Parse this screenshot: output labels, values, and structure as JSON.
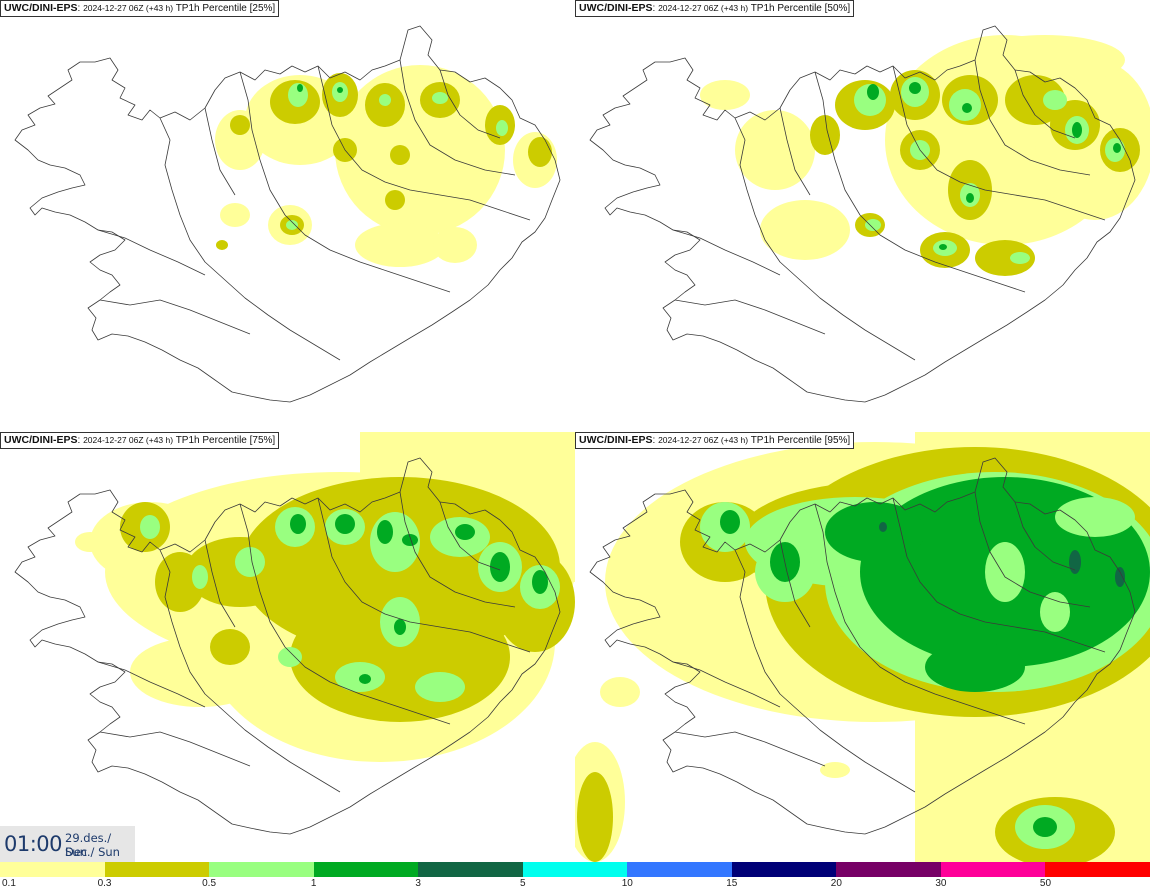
{
  "panels": [
    {
      "source": "UWC/DINI-EPS",
      "run": "2024-12-27 06Z (+43 h)",
      "variable": "TP1h Percentile [25%]"
    },
    {
      "source": "UWC/DINI-EPS",
      "run": "2024-12-27 06Z (+43 h)",
      "variable": "TP1h Percentile [50%]"
    },
    {
      "source": "UWC/DINI-EPS",
      "run": "2024-12-27 06Z (+43 h)",
      "variable": "TP1h Percentile [75%]"
    },
    {
      "source": "UWC/DINI-EPS",
      "run": "2024-12-27 06Z (+43 h)",
      "variable": "TP1h Percentile [95%]"
    }
  ],
  "valid_time": {
    "time": "01:00",
    "date": "29.des./ Dec",
    "day": "Sun./ Sun"
  },
  "legend": {
    "labels": [
      "0.1",
      "0.3",
      "0.5",
      "1",
      "3",
      "5",
      "10",
      "15",
      "20",
      "30",
      "50"
    ],
    "colors": [
      "#ffff99",
      "#cccc00",
      "#99ff80",
      "#00aa22",
      "#116644",
      "#00ffee",
      "#3377ff",
      "#000077",
      "#770066",
      "#ff0099",
      "#ff0000"
    ]
  }
}
